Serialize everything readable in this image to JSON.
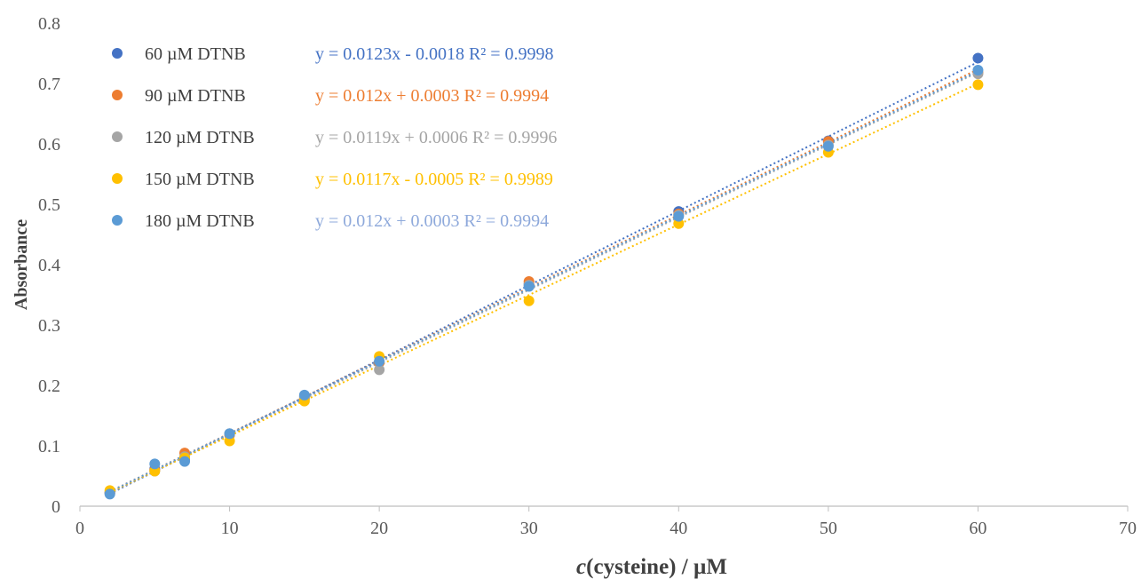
{
  "chart_data": {
    "type": "scatter",
    "title": "",
    "xlabel_italic": "c",
    "xlabel_rest": "(cysteine) / µM",
    "ylabel": "Absorbance",
    "xlim": [
      0,
      70
    ],
    "ylim": [
      0,
      0.8
    ],
    "xticks": [
      "0",
      "10",
      "20",
      "30",
      "40",
      "50",
      "60",
      "70"
    ],
    "yticks": [
      "0",
      "0.1",
      "0.2",
      "0.3",
      "0.4",
      "0.5",
      "0.6",
      "0.7",
      "0.8"
    ],
    "grid": false,
    "legend_position": "top-left",
    "trendline_style": "dotted",
    "x": [
      2,
      5,
      7,
      10,
      15,
      20,
      30,
      40,
      50,
      60
    ],
    "series": [
      {
        "name": "60 µM DTNB",
        "color": "#4472C4",
        "values": [
          0.022,
          0.062,
          0.078,
          0.12,
          0.182,
          0.238,
          0.368,
          0.488,
          0.605,
          0.742
        ],
        "equation": "y = 0.0123x - 0.0018",
        "r2": "R² = 0.9998"
      },
      {
        "name": "90 µM DTNB",
        "color": "#ED7D31",
        "values": [
          0.022,
          0.06,
          0.088,
          0.118,
          0.178,
          0.238,
          0.372,
          0.484,
          0.604,
          0.718
        ],
        "equation": "y = 0.012x + 0.0003",
        "r2": "R² = 0.9994"
      },
      {
        "name": "120 µM DTNB",
        "color": "#A5A5A5",
        "values": [
          0.022,
          0.058,
          0.082,
          0.12,
          0.18,
          0.226,
          0.366,
          0.482,
          0.598,
          0.716
        ],
        "equation": "y = 0.0119x + 0.0006",
        "r2": "R² = 0.9996"
      },
      {
        "name": "150 µM DTNB",
        "color": "#FFC000",
        "values": [
          0.026,
          0.058,
          0.08,
          0.108,
          0.174,
          0.248,
          0.34,
          0.468,
          0.586,
          0.698
        ],
        "equation": "y = 0.0117x - 0.0005",
        "r2": "R² = 0.9989"
      },
      {
        "name": "180 µM DTNB",
        "color": "#5B9BD5",
        "values": [
          0.02,
          0.07,
          0.074,
          0.12,
          0.184,
          0.24,
          0.364,
          0.48,
          0.596,
          0.722
        ],
        "equation": "y = 0.012x + 0.0003",
        "r2": "R² = 0.9994",
        "equation_color": "#8EA9DB"
      }
    ]
  }
}
